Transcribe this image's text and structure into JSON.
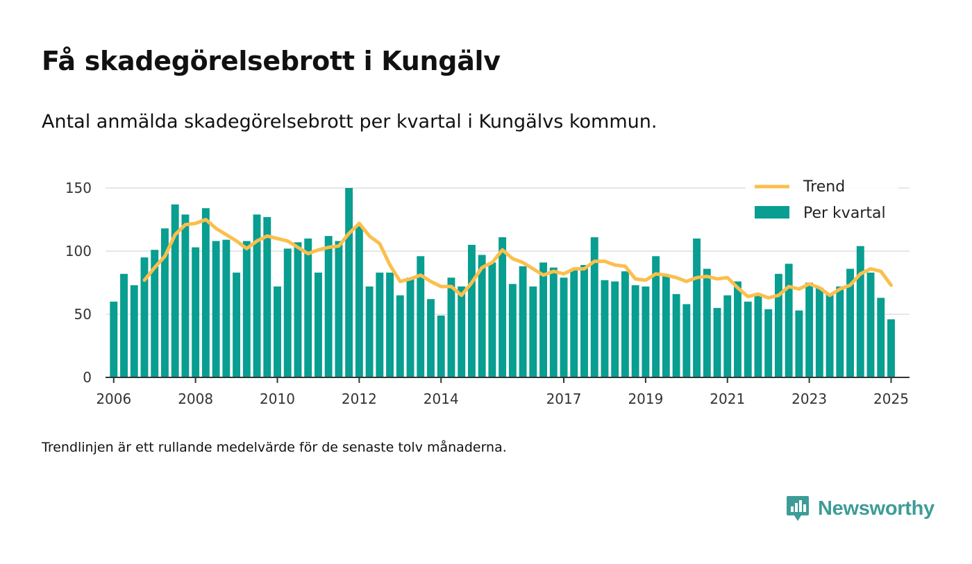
{
  "title": "Få skadegörelsebrott i Kungälv",
  "subtitle": "Antal anmälda skadegörelsebrott per kvartal i Kungälvs kommun.",
  "footnote": "Trendlinjen är ett rullande medelvärde för de senaste tolv månaderna.",
  "brand": {
    "name": "Newsworthy",
    "icon": "newsworthy-logo-icon",
    "color": "#3d9c97"
  },
  "colors": {
    "bars": "#089e91",
    "trend": "#fbbf4d",
    "grid": "#dddddd",
    "axis": "#333333"
  },
  "chart_data": {
    "type": "bar",
    "title": "Få skadegörelsebrott i Kungälv",
    "subtitle": "Antal anmälda skadegörelsebrott per kvartal i Kungälvs kommun.",
    "xlabel": "",
    "ylabel": "",
    "ylim": [
      0,
      150
    ],
    "yticks": [
      0,
      50,
      100,
      150
    ],
    "xlim": [
      2005.8,
      2025.45
    ],
    "xticks": [
      {
        "label": "2006",
        "x": 2006.0
      },
      {
        "label": "2008",
        "x": 2008.0
      },
      {
        "label": "2010",
        "x": 2010.0
      },
      {
        "label": "2012",
        "x": 2012.0
      },
      {
        "label": "2014",
        "x": 2014.0
      },
      {
        "label": "2017",
        "x": 2017.0
      },
      {
        "label": "2019",
        "x": 2019.0
      },
      {
        "label": "2021",
        "x": 2021.0
      },
      {
        "label": "2023",
        "x": 2023.0
      },
      {
        "label": "2025",
        "x": 2025.0
      }
    ],
    "grid": true,
    "legend_position": "top-right",
    "series": [
      {
        "name": "Per kvartal",
        "type": "bar",
        "values": [
          60,
          82,
          73,
          95,
          101,
          118,
          137,
          129,
          103,
          134,
          108,
          109,
          83,
          108,
          129,
          127,
          72,
          102,
          107,
          110,
          83,
          112,
          108,
          150,
          120,
          72,
          83,
          83,
          65,
          79,
          96,
          62,
          49,
          79,
          72,
          105,
          97,
          91,
          111,
          74,
          88,
          72,
          91,
          87,
          79,
          86,
          89,
          111,
          77,
          76,
          84,
          73,
          72,
          96,
          81,
          66,
          58,
          110,
          86,
          55,
          65,
          76,
          60,
          66,
          54,
          82,
          90,
          53,
          75,
          71,
          66,
          72,
          86,
          104,
          83,
          63,
          46
        ]
      },
      {
        "name": "Trend",
        "type": "line",
        "values": [
          null,
          null,
          null,
          77,
          87,
          96,
          113,
          121,
          122,
          125,
          118,
          113,
          108,
          102,
          108,
          112,
          110,
          108,
          103,
          98,
          101,
          103,
          104,
          114,
          122,
          112,
          106,
          89,
          76,
          78,
          81,
          76,
          72,
          72,
          65,
          75,
          87,
          91,
          101,
          94,
          91,
          86,
          81,
          84,
          82,
          86,
          86,
          92,
          92,
          89,
          88,
          78,
          77,
          82,
          81,
          79,
          76,
          79,
          80,
          78,
          79,
          71,
          64,
          66,
          63,
          65,
          72,
          70,
          74,
          71,
          65,
          70,
          73,
          82,
          86,
          84,
          73
        ]
      }
    ]
  }
}
